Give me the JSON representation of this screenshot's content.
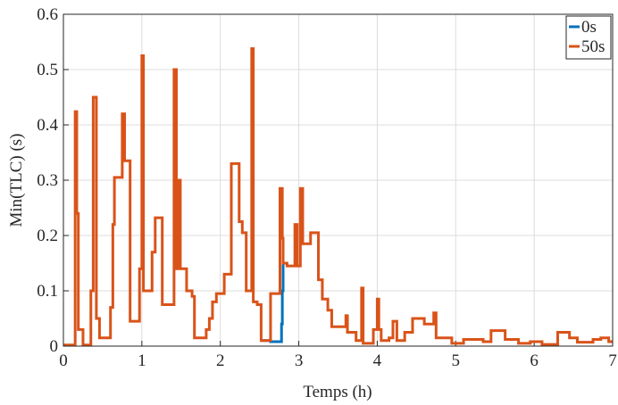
{
  "chart_data": {
    "type": "line",
    "step": true,
    "xlabel": "Temps (h)",
    "ylabel": "Min(TLC) (s)",
    "xlim": [
      0,
      7
    ],
    "xticks": [
      0,
      1,
      2,
      3,
      4,
      5,
      6,
      7
    ],
    "ylim": [
      0,
      0.6
    ],
    "yticks": [
      0,
      0.1,
      0.2,
      0.3,
      0.4,
      0.5,
      0.6
    ],
    "grid": true,
    "legend": "top-right",
    "series": [
      {
        "name": "0s",
        "color": "#0072bd",
        "x": [
          2.52,
          2.64,
          2.78,
          2.79,
          2.8
        ],
        "values": [
          0.01,
          0.008,
          0.04,
          0.1,
          0.15
        ]
      },
      {
        "name": "50s",
        "color": "#d95319",
        "x": [
          0,
          0.15,
          0.17,
          0.19,
          0.25,
          0.35,
          0.38,
          0.42,
          0.46,
          0.6,
          0.63,
          0.65,
          0.75,
          0.78,
          0.85,
          0.97,
          1.0,
          1.02,
          1.13,
          1.17,
          1.26,
          1.41,
          1.44,
          1.47,
          1.49,
          1.57,
          1.64,
          1.67,
          1.82,
          1.86,
          1.9,
          1.95,
          2.05,
          2.14,
          2.24,
          2.28,
          2.33,
          2.4,
          2.42,
          2.47,
          2.52,
          2.64,
          2.76,
          2.79,
          2.8,
          2.85,
          2.95,
          2.98,
          3.02,
          3.05,
          3.15,
          3.25,
          3.3,
          3.37,
          3.42,
          3.6,
          3.62,
          3.73,
          3.8,
          3.82,
          3.95,
          4.0,
          4.02,
          4.05,
          4.15,
          4.2,
          4.25,
          4.35,
          4.45,
          4.6,
          4.72,
          4.75,
          4.95,
          5.1,
          5.35,
          5.45,
          5.63,
          5.8,
          5.95,
          6.1,
          6.3,
          6.45,
          6.55,
          6.75,
          6.85,
          6.95,
          7.0
        ],
        "values": [
          0.002,
          0.424,
          0.24,
          0.03,
          0.002,
          0.1,
          0.45,
          0.05,
          0.015,
          0.07,
          0.22,
          0.305,
          0.42,
          0.335,
          0.045,
          0.14,
          0.525,
          0.1,
          0.17,
          0.232,
          0.075,
          0.5,
          0.14,
          0.3,
          0.14,
          0.1,
          0.09,
          0.015,
          0.03,
          0.05,
          0.08,
          0.095,
          0.13,
          0.33,
          0.225,
          0.205,
          0.1,
          0.538,
          0.08,
          0.075,
          0.01,
          0.095,
          0.285,
          0.195,
          0.15,
          0.145,
          0.22,
          0.145,
          0.285,
          0.185,
          0.205,
          0.12,
          0.085,
          0.065,
          0.035,
          0.055,
          0.025,
          0.01,
          0.105,
          0.005,
          0.03,
          0.085,
          0.03,
          0.01,
          0.015,
          0.045,
          0.01,
          0.025,
          0.05,
          0.04,
          0.06,
          0.015,
          0.005,
          0.012,
          0.008,
          0.028,
          0.012,
          0.005,
          0.008,
          0.003,
          0.025,
          0.015,
          0.007,
          0.012,
          0.015,
          0.008,
          0.008
        ]
      }
    ]
  }
}
